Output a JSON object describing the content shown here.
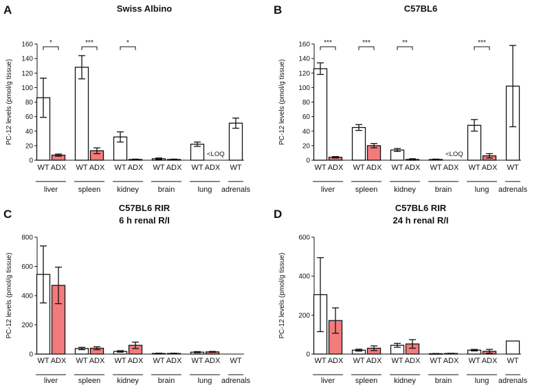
{
  "chart_data": [
    {
      "type": "bar",
      "panel_letter": "A",
      "title": [
        "Swiss Albino"
      ],
      "ylabel": "PC-12 levels (pmol/g tissue)",
      "ylim": [
        0,
        160
      ],
      "yticks": [
        0,
        20,
        40,
        60,
        80,
        100,
        120,
        140,
        160
      ],
      "groups": [
        "liver",
        "spleen",
        "kidney",
        "brain",
        "lung",
        "adrenals"
      ],
      "categories": [
        "WT",
        "ADX",
        "WT",
        "ADX",
        "WT",
        "ADX",
        "WT",
        "ADX",
        "WT",
        "ADX",
        "WT"
      ],
      "bars": [
        {
          "group": "liver",
          "genotype": "WT",
          "value": 86,
          "error": 27
        },
        {
          "group": "liver",
          "genotype": "ADX",
          "value": 7,
          "error": 1.5
        },
        {
          "group": "spleen",
          "genotype": "WT",
          "value": 128,
          "error": 16
        },
        {
          "group": "spleen",
          "genotype": "ADX",
          "value": 13,
          "error": 4
        },
        {
          "group": "kidney",
          "genotype": "WT",
          "value": 32,
          "error": 7
        },
        {
          "group": "kidney",
          "genotype": "ADX",
          "value": 1,
          "error": 0.5
        },
        {
          "group": "brain",
          "genotype": "WT",
          "value": 2,
          "error": 1
        },
        {
          "group": "brain",
          "genotype": "ADX",
          "value": 1,
          "error": 0.5
        },
        {
          "group": "lung",
          "genotype": "WT",
          "value": 22,
          "error": 3
        },
        {
          "group": "lung",
          "genotype": "ADX",
          "value": null,
          "error": null,
          "note": "<LOQ"
        },
        {
          "group": "adrenals",
          "genotype": "WT",
          "value": 51,
          "error": 7
        }
      ],
      "significance": [
        {
          "group": "liver",
          "label": "*"
        },
        {
          "group": "spleen",
          "label": "***"
        },
        {
          "group": "kidney",
          "label": "*"
        }
      ],
      "colors": {
        "WT": "#ffffff",
        "ADX": "#f27b7b"
      }
    },
    {
      "type": "bar",
      "panel_letter": "B",
      "title": [
        "C57BL6"
      ],
      "ylabel": "PC-12 levels (pmol/g tissue)",
      "ylim": [
        0,
        160
      ],
      "yticks": [
        0,
        20,
        40,
        60,
        80,
        100,
        120,
        140,
        160
      ],
      "groups": [
        "liver",
        "spleen",
        "kidney",
        "brain",
        "lung",
        "adrenals"
      ],
      "categories": [
        "WT",
        "ADX",
        "WT",
        "ADX",
        "WT",
        "ADX",
        "WT",
        "ADX",
        "WT",
        "ADX",
        "WT"
      ],
      "bars": [
        {
          "group": "liver",
          "genotype": "WT",
          "value": 126,
          "error": 8
        },
        {
          "group": "liver",
          "genotype": "ADX",
          "value": 4,
          "error": 1
        },
        {
          "group": "spleen",
          "genotype": "WT",
          "value": 45,
          "error": 4
        },
        {
          "group": "spleen",
          "genotype": "ADX",
          "value": 20,
          "error": 3
        },
        {
          "group": "kidney",
          "genotype": "WT",
          "value": 14,
          "error": 2
        },
        {
          "group": "kidney",
          "genotype": "ADX",
          "value": 1,
          "error": 1
        },
        {
          "group": "brain",
          "genotype": "WT",
          "value": 1,
          "error": 0.5
        },
        {
          "group": "brain",
          "genotype": "ADX",
          "value": null,
          "error": null,
          "note": "<LOQ"
        },
        {
          "group": "lung",
          "genotype": "WT",
          "value": 48,
          "error": 8
        },
        {
          "group": "lung",
          "genotype": "ADX",
          "value": 6,
          "error": 3
        },
        {
          "group": "adrenals",
          "genotype": "WT",
          "value": 102,
          "error": 56
        }
      ],
      "significance": [
        {
          "group": "liver",
          "label": "***"
        },
        {
          "group": "spleen",
          "label": "***"
        },
        {
          "group": "kidney",
          "label": "**"
        },
        {
          "group": "lung",
          "label": "***"
        }
      ],
      "colors": {
        "WT": "#ffffff",
        "ADX": "#f27b7b"
      }
    },
    {
      "type": "bar",
      "panel_letter": "C",
      "title": [
        "C57BL6 RIR",
        "6 h renal R/I"
      ],
      "ylabel": "PC-12 levels (pmol/g tissue)",
      "ylim": [
        0,
        800
      ],
      "yticks": [
        0,
        200,
        400,
        600,
        800
      ],
      "groups": [
        "liver",
        "spleen",
        "kidney",
        "brain",
        "lung",
        "adrenals"
      ],
      "categories": [
        "WT",
        "ADX",
        "WT",
        "ADX",
        "WT",
        "ADX",
        "WT",
        "ADX",
        "WT",
        "ADX",
        "WT"
      ],
      "bars": [
        {
          "group": "liver",
          "genotype": "WT",
          "value": 545,
          "error": 195
        },
        {
          "group": "liver",
          "genotype": "ADX",
          "value": 470,
          "error": 125
        },
        {
          "group": "spleen",
          "genotype": "WT",
          "value": 38,
          "error": 8
        },
        {
          "group": "spleen",
          "genotype": "ADX",
          "value": 40,
          "error": 10
        },
        {
          "group": "kidney",
          "genotype": "WT",
          "value": 18,
          "error": 5
        },
        {
          "group": "kidney",
          "genotype": "ADX",
          "value": 60,
          "error": 22
        },
        {
          "group": "brain",
          "genotype": "WT",
          "value": 4,
          "error": 2
        },
        {
          "group": "brain",
          "genotype": "ADX",
          "value": 4,
          "error": 2
        },
        {
          "group": "lung",
          "genotype": "WT",
          "value": 13,
          "error": 4
        },
        {
          "group": "lung",
          "genotype": "ADX",
          "value": 15,
          "error": 3
        },
        {
          "group": "adrenals",
          "genotype": "WT",
          "value": null,
          "error": null
        }
      ],
      "significance": [],
      "colors": {
        "WT": "#ffffff",
        "ADX": "#f27b7b"
      }
    },
    {
      "type": "bar",
      "panel_letter": "D",
      "title": [
        "C57BL6 RIR",
        "24 h renal R/I"
      ],
      "ylabel": "PC-12 levels (pmol/g tissue)",
      "ylim": [
        0,
        600
      ],
      "yticks": [
        0,
        200,
        400,
        600
      ],
      "groups": [
        "liver",
        "spleen",
        "kidney",
        "brain",
        "lung",
        "adrenals"
      ],
      "categories": [
        "WT",
        "ADX",
        "WT",
        "ADX",
        "WT",
        "ADX",
        "WT",
        "ADX",
        "WT",
        "ADX",
        "WT"
      ],
      "bars": [
        {
          "group": "liver",
          "genotype": "WT",
          "value": 305,
          "error": 190
        },
        {
          "group": "liver",
          "genotype": "ADX",
          "value": 172,
          "error": 65
        },
        {
          "group": "spleen",
          "genotype": "WT",
          "value": 20,
          "error": 5
        },
        {
          "group": "spleen",
          "genotype": "ADX",
          "value": 30,
          "error": 12
        },
        {
          "group": "kidney",
          "genotype": "WT",
          "value": 45,
          "error": 10
        },
        {
          "group": "kidney",
          "genotype": "ADX",
          "value": 52,
          "error": 22
        },
        {
          "group": "brain",
          "genotype": "WT",
          "value": 2,
          "error": 1
        },
        {
          "group": "brain",
          "genotype": "ADX",
          "value": 3,
          "error": 1
        },
        {
          "group": "lung",
          "genotype": "WT",
          "value": 20,
          "error": 4
        },
        {
          "group": "lung",
          "genotype": "ADX",
          "value": 14,
          "error": 10
        },
        {
          "group": "adrenals",
          "genotype": "WT",
          "value": 67,
          "error": 0
        }
      ],
      "significance": [],
      "colors": {
        "WT": "#ffffff",
        "ADX": "#f27b7b"
      }
    }
  ]
}
